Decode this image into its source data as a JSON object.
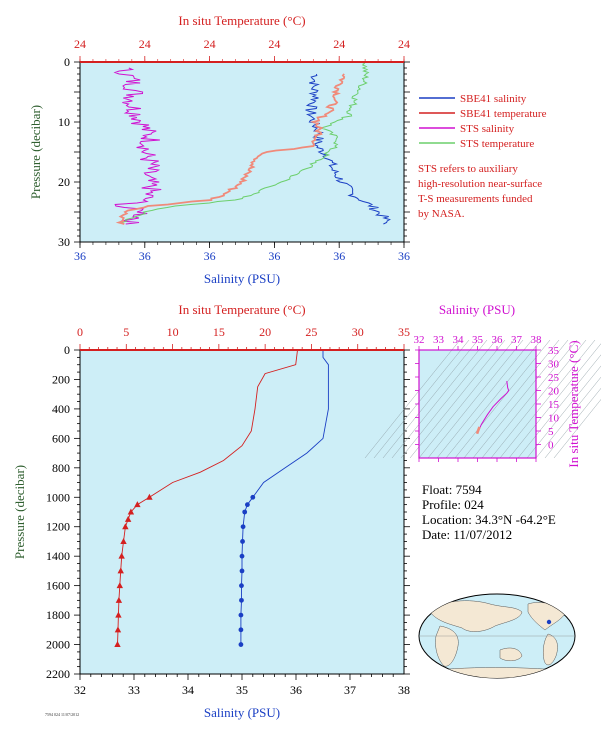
{
  "colors": {
    "plot_bg": "#cdeef7",
    "red": "#d42020",
    "blue": "#1a3fc4",
    "magenta": "#d010d0",
    "green": "#6ccf6c",
    "salmon": "#f08a7a",
    "axis_green": "#2e5e2e",
    "axis_blue": "#1a3fc4"
  },
  "info": {
    "float": "Float:  7594",
    "profile": "Profile:  024",
    "location": "Location:  34.3°N  -64.2°E",
    "date": "Date:  11/07/2012"
  },
  "note": [
    "STS refers to auxiliary",
    "high-resolution near-surface",
    "T-S measurements funded",
    "by NASA."
  ],
  "chart_data": [
    {
      "id": "top",
      "type": "line",
      "title_top_axis": "In situ Temperature (°C)",
      "xlabel": "Salinity (PSU)",
      "ylabel": "Pressure (decibar)",
      "ylim": [
        0,
        30
      ],
      "yticks": [
        0,
        10,
        20,
        30
      ],
      "x_tick_labels": [
        "36",
        "36",
        "36",
        "36",
        "36",
        "36"
      ],
      "top_tick_labels": [
        "24",
        "24",
        "24",
        "24",
        "24",
        "24"
      ],
      "legend": [
        {
          "name": "SBE41 salinity",
          "color": "#1a3fc4"
        },
        {
          "name": "SBE41 temperature",
          "color": "#d42020"
        },
        {
          "name": "STS salinity",
          "color": "#d010d0"
        },
        {
          "name": "STS temperature",
          "color": "#6ccf6c"
        }
      ],
      "series": [
        {
          "name": "SBE41 salinity",
          "color": "#1a3fc4",
          "x_frac_by_pressure": [
            [
              2,
              0.73
            ],
            [
              4,
              0.72
            ],
            [
              6,
              0.73
            ],
            [
              8,
              0.71
            ],
            [
              10,
              0.72
            ],
            [
              12,
              0.74
            ],
            [
              14,
              0.73
            ],
            [
              16,
              0.77
            ],
            [
              18,
              0.78
            ],
            [
              20,
              0.81
            ],
            [
              22,
              0.84
            ],
            [
              24,
              0.9
            ],
            [
              26,
              0.94
            ],
            [
              27,
              0.95
            ]
          ]
        },
        {
          "name": "SBE41 temperature",
          "color": "#d42020",
          "x_frac_by_pressure": [
            [
              0,
              0.0
            ],
            [
              0,
              1.0
            ]
          ]
        },
        {
          "name": "STS salinity",
          "color": "#d010d0",
          "x_frac_by_pressure": [
            [
              1,
              0.13
            ],
            [
              3,
              0.16
            ],
            [
              5,
              0.17
            ],
            [
              7,
              0.16
            ],
            [
              9,
              0.18
            ],
            [
              11,
              0.2
            ],
            [
              13,
              0.22
            ],
            [
              15,
              0.2
            ],
            [
              17,
              0.22
            ],
            [
              19,
              0.2
            ],
            [
              21,
              0.22
            ],
            [
              23,
              0.2
            ],
            [
              24,
              0.12
            ],
            [
              25,
              0.2
            ],
            [
              26,
              0.18
            ],
            [
              27,
              0.14
            ]
          ]
        },
        {
          "name": "STS temperature",
          "color": "#6ccf6c",
          "x_frac_by_pressure": [
            [
              0,
              0.88
            ],
            [
              3,
              0.88
            ],
            [
              6,
              0.85
            ],
            [
              9,
              0.83
            ],
            [
              11,
              0.75
            ],
            [
              13,
              0.8
            ],
            [
              15,
              0.77
            ],
            [
              17,
              0.72
            ],
            [
              19,
              0.66
            ],
            [
              21,
              0.58
            ],
            [
              23,
              0.48
            ],
            [
              24,
              0.3
            ],
            [
              25,
              0.2
            ],
            [
              26,
              0.16
            ],
            [
              27,
              0.13
            ]
          ]
        },
        {
          "name": "STS temperature (salmon)",
          "color": "#f08a7a",
          "x_frac_by_pressure": [
            [
              2,
              0.82
            ],
            [
              4,
              0.8
            ],
            [
              6,
              0.79
            ],
            [
              8,
              0.77
            ],
            [
              10,
              0.73
            ],
            [
              12,
              0.74
            ],
            [
              14,
              0.72
            ],
            [
              15,
              0.58
            ],
            [
              16,
              0.55
            ],
            [
              18,
              0.52
            ],
            [
              20,
              0.5
            ],
            [
              22,
              0.45
            ],
            [
              23,
              0.4
            ],
            [
              24,
              0.22
            ],
            [
              25,
              0.14
            ],
            [
              27,
              0.13
            ]
          ]
        }
      ]
    },
    {
      "id": "bottom",
      "type": "line",
      "title_top_axis": "In situ Temperature (°C)",
      "xlabel": "Salinity (PSU)",
      "ylabel": "Pressure (decibar)",
      "xlim": [
        32,
        38
      ],
      "xticks": [
        32,
        33,
        34,
        35,
        36,
        37,
        38
      ],
      "top_xlim": [
        0,
        35
      ],
      "top_xticks": [
        0,
        5,
        10,
        15,
        20,
        25,
        30,
        35
      ],
      "ylim": [
        0,
        2200
      ],
      "yticks": [
        0,
        200,
        400,
        600,
        800,
        1000,
        1200,
        1400,
        1600,
        1800,
        2000,
        2200
      ],
      "series": [
        {
          "name": "temperature",
          "color": "#d42020",
          "axis": "top",
          "points": [
            [
              23.5,
              0
            ],
            [
              23.4,
              50
            ],
            [
              23.3,
              100
            ],
            [
              20.0,
              160
            ],
            [
              19.2,
              250
            ],
            [
              18.9,
              400
            ],
            [
              18.5,
              550
            ],
            [
              17.5,
              650
            ],
            [
              15.5,
              750
            ],
            [
              13.0,
              830
            ],
            [
              10.0,
              900
            ],
            [
              8.0,
              980
            ],
            [
              7.5,
              1000
            ],
            [
              6.2,
              1050
            ],
            [
              5.5,
              1100
            ],
            [
              5.2,
              1150
            ],
            [
              4.9,
              1200
            ],
            [
              4.7,
              1300
            ],
            [
              4.5,
              1400
            ],
            [
              4.4,
              1500
            ],
            [
              4.3,
              1600
            ],
            [
              4.2,
              1700
            ],
            [
              4.15,
              1800
            ],
            [
              4.1,
              1900
            ],
            [
              4.05,
              2000
            ]
          ],
          "markers_from_pressure": 1000
        },
        {
          "name": "salinity",
          "color": "#1a3fc4",
          "axis": "bottom",
          "points": [
            [
              36.5,
              0
            ],
            [
              36.5,
              50
            ],
            [
              36.6,
              100
            ],
            [
              36.6,
              200
            ],
            [
              36.6,
              300
            ],
            [
              36.6,
              400
            ],
            [
              36.55,
              500
            ],
            [
              36.5,
              600
            ],
            [
              36.2,
              700
            ],
            [
              35.8,
              800
            ],
            [
              35.4,
              900
            ],
            [
              35.2,
              1000
            ],
            [
              35.1,
              1050
            ],
            [
              35.05,
              1100
            ],
            [
              35.02,
              1200
            ],
            [
              35.01,
              1300
            ],
            [
              35.0,
              1400
            ],
            [
              35.0,
              1500
            ],
            [
              34.99,
              1600
            ],
            [
              34.99,
              1700
            ],
            [
              34.98,
              1800
            ],
            [
              34.98,
              1900
            ],
            [
              34.98,
              2000
            ]
          ],
          "markers_from_pressure": 1000
        }
      ]
    },
    {
      "id": "ts_inset",
      "type": "line",
      "xlabel": "Salinity (PSU)",
      "ylabel": "In situ Temperature (°C)",
      "xlim": [
        32,
        38
      ],
      "xticks": [
        32,
        33,
        34,
        35,
        36,
        37,
        38
      ],
      "ylim": [
        -5,
        35
      ],
      "yticks": [
        0,
        5,
        10,
        15,
        20,
        25,
        30,
        35
      ],
      "series": [
        {
          "name": "T-S",
          "color": "#d010d0",
          "points": [
            [
              35.0,
              4.1
            ],
            [
              35.05,
              5
            ],
            [
              35.2,
              7.5
            ],
            [
              35.5,
              11
            ],
            [
              35.8,
              14
            ],
            [
              36.2,
              17
            ],
            [
              36.5,
              19
            ],
            [
              36.6,
              20
            ],
            [
              36.55,
              21
            ],
            [
              36.5,
              23.5
            ]
          ]
        },
        {
          "name": "T-S deep",
          "color": "#f08a7a",
          "points": [
            [
              34.98,
              4.0
            ],
            [
              35.0,
              4.5
            ],
            [
              35.05,
              5.5
            ],
            [
              35.1,
              6.5
            ]
          ]
        }
      ]
    }
  ],
  "footer_small": "7594  024  11/07/2012"
}
